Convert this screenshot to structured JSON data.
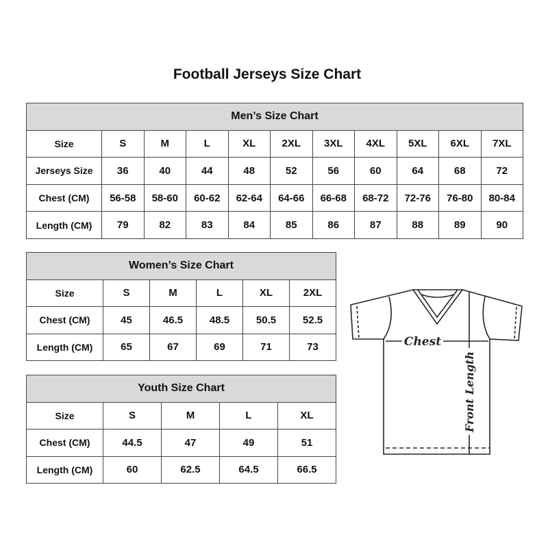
{
  "title": "Football Jerseys Size Chart",
  "men": {
    "heading": "Men’s Size Chart",
    "rows": [
      {
        "label": "Size",
        "values": [
          "S",
          "M",
          "L",
          "XL",
          "2XL",
          "3XL",
          "4XL",
          "5XL",
          "6XL",
          "7XL"
        ]
      },
      {
        "label": "Jerseys Size",
        "values": [
          "36",
          "40",
          "44",
          "48",
          "52",
          "56",
          "60",
          "64",
          "68",
          "72"
        ]
      },
      {
        "label": "Chest (CM)",
        "values": [
          "56-58",
          "58-60",
          "60-62",
          "62-64",
          "64-66",
          "66-68",
          "68-72",
          "72-76",
          "76-80",
          "80-84"
        ]
      },
      {
        "label": "Length (CM)",
        "values": [
          "79",
          "82",
          "83",
          "84",
          "85",
          "86",
          "87",
          "88",
          "89",
          "90"
        ]
      }
    ]
  },
  "women": {
    "heading": "Women’s Size Chart",
    "rows": [
      {
        "label": "Size",
        "values": [
          "S",
          "M",
          "L",
          "XL",
          "2XL"
        ]
      },
      {
        "label": "Chest (CM)",
        "values": [
          "45",
          "46.5",
          "48.5",
          "50.5",
          "52.5"
        ]
      },
      {
        "label": "Length (CM)",
        "values": [
          "65",
          "67",
          "69",
          "71",
          "73"
        ]
      }
    ]
  },
  "youth": {
    "heading": "Youth Size Chart",
    "rows": [
      {
        "label": "Size",
        "values": [
          "S",
          "M",
          "L",
          "XL"
        ]
      },
      {
        "label": "Chest (CM)",
        "values": [
          "44.5",
          "47",
          "49",
          "51"
        ]
      },
      {
        "label": "Length (CM)",
        "values": [
          "60",
          "62.5",
          "64.5",
          "66.5"
        ]
      }
    ]
  },
  "diagram": {
    "chest_label": "Chest",
    "length_label": "Front Length"
  }
}
